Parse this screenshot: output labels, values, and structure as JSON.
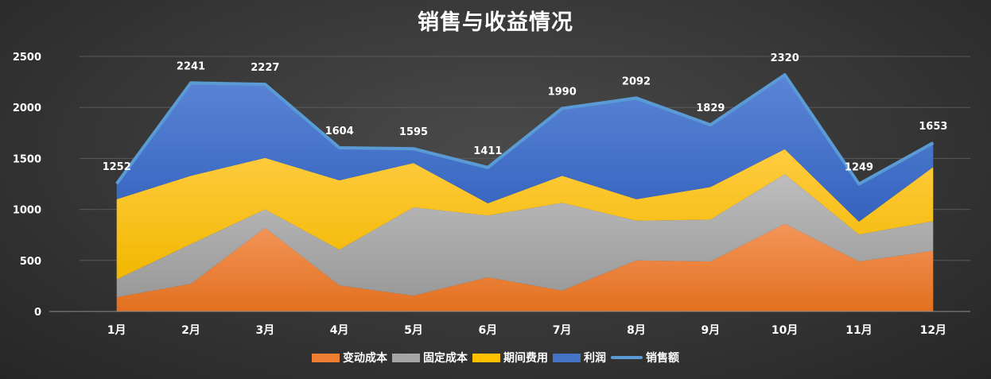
{
  "chart_data": {
    "type": "area",
    "title": "销售与收益情况",
    "categories": [
      "1月",
      "2月",
      "3月",
      "4月",
      "5月",
      "6月",
      "7月",
      "8月",
      "9月",
      "10月",
      "11月",
      "12月"
    ],
    "ylim": [
      0,
      2500
    ],
    "yticks": [
      0,
      500,
      1000,
      1500,
      2000,
      2500
    ],
    "grid": true,
    "legend_position": "bottom",
    "stacked_series": [
      {
        "name": "变动成本",
        "color": "#ED7D31",
        "values": [
          140,
          270,
          820,
          255,
          155,
          335,
          205,
          500,
          490,
          860,
          490,
          595
        ]
      },
      {
        "name": "固定成本",
        "color": "#A5A5A5",
        "values": [
          175,
          390,
          180,
          350,
          865,
          605,
          860,
          390,
          410,
          485,
          265,
          290
        ]
      },
      {
        "name": "期间费用",
        "color": "#FFC000",
        "values": [
          785,
          670,
          505,
          680,
          435,
          120,
          265,
          210,
          320,
          245,
          125,
          530
        ]
      },
      {
        "name": "利润",
        "color": "#4472C4",
        "values": [
          152,
          911,
          722,
          319,
          140,
          351,
          660,
          992,
          609,
          730,
          369,
          238
        ]
      }
    ],
    "line_series": {
      "name": "销售额",
      "color": "#5B9BD5",
      "values": [
        1252,
        2241,
        2227,
        1604,
        1595,
        1411,
        1990,
        2092,
        1829,
        2320,
        1249,
        1653
      ]
    }
  }
}
